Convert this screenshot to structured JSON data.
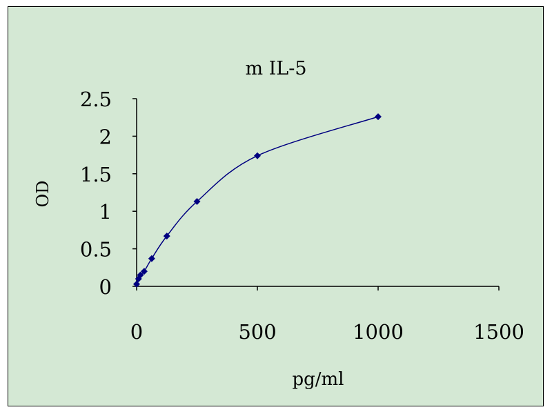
{
  "chart_data": {
    "type": "scatter",
    "title": "m IL-5",
    "xlabel": "pg/ml",
    "ylabel": "OD",
    "xlim": [
      0,
      1500
    ],
    "ylim": [
      0,
      2.5
    ],
    "x_ticks": [
      0,
      500,
      1000,
      1500
    ],
    "x_tick_labels": [
      "0",
      "500",
      "1000",
      "1500"
    ],
    "y_ticks": [
      0,
      0.5,
      1,
      1.5,
      2,
      2.5
    ],
    "y_tick_labels": [
      "0",
      "0.5",
      "1",
      "1.5",
      "2",
      "2.5"
    ],
    "grid": false,
    "legend": "none",
    "series": [
      {
        "x": [
          0,
          7.8,
          15.6,
          31.25,
          62.5,
          125,
          250,
          500,
          1000
        ],
        "y": [
          0.03,
          0.1,
          0.15,
          0.2,
          0.37,
          0.67,
          1.13,
          1.74,
          2.26
        ],
        "smooth": true,
        "marker": "diamond",
        "color": "#000080"
      }
    ]
  },
  "colors": {
    "background": "#d4e8d4",
    "series": "#000080",
    "axis": "#000000"
  }
}
